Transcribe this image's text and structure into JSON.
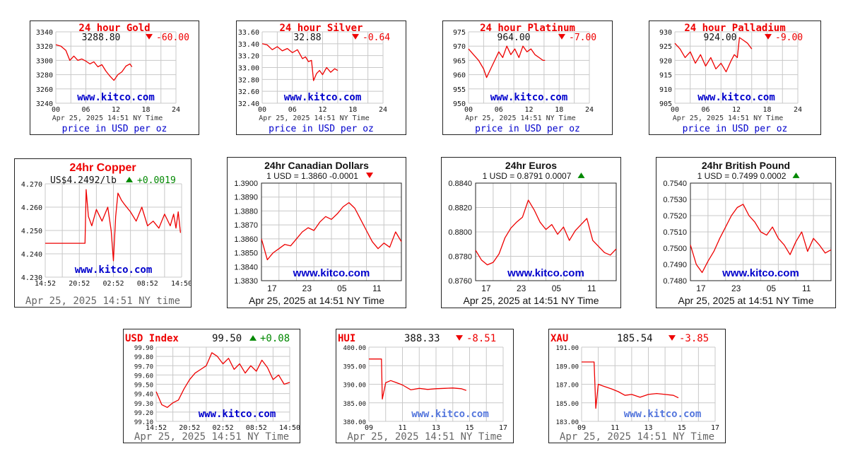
{
  "colors": {
    "line": "#ee0000",
    "up": "#008800",
    "down": "#ee0000",
    "kitco": "#0000cc",
    "kitco_light": "#5577dd",
    "grid": "#c8c8c8",
    "fgray": "#666666"
  },
  "panels": [
    {
      "id": "gold",
      "style": "metal",
      "title": "24 hour Gold",
      "price": "3288.80",
      "change": "-60.00",
      "direction": "down",
      "watermark": "www.kitco.com",
      "timestamp": "Apr 25, 2025 14:51 NY Time",
      "footer": "price in USD per oz",
      "chart_data": {
        "type": "line",
        "ylim": [
          3240,
          3340
        ],
        "yticks": [
          "3340",
          "3320",
          "3300",
          "3280",
          "3260",
          "3240"
        ],
        "xlim": [
          0,
          24
        ],
        "xticks": [
          "00",
          "06",
          "12",
          "18",
          "24"
        ],
        "x": [
          0,
          1,
          2,
          2.8,
          3.6,
          4.4,
          5.2,
          6,
          6.8,
          7.6,
          8.4,
          9.2,
          10,
          10.8,
          11.6,
          12.4,
          13.2,
          14,
          14.8,
          15.2
        ],
        "values": [
          3322,
          3320,
          3314,
          3300,
          3306,
          3300,
          3302,
          3299,
          3295,
          3298,
          3291,
          3294,
          3285,
          3278,
          3272,
          3280,
          3284,
          3292,
          3295,
          3291
        ]
      }
    },
    {
      "id": "silver",
      "style": "metal",
      "title": "24 hour Silver",
      "price": "32.88",
      "change": "-0.64",
      "direction": "down",
      "watermark": "www.kitco.com",
      "timestamp": "Apr 25, 2025 14:51 NY Time",
      "footer": "price in USD per oz",
      "chart_data": {
        "type": "line",
        "ylim": [
          32.4,
          33.6
        ],
        "yticks": [
          "33.60",
          "33.40",
          "33.20",
          "33.00",
          "32.80",
          "32.60",
          "32.40"
        ],
        "xlim": [
          0,
          24
        ],
        "xticks": [
          "00",
          "06",
          "12",
          "18",
          "24"
        ],
        "x": [
          0,
          1,
          2,
          3,
          4,
          5,
          6,
          7,
          8,
          8.6,
          9.2,
          9.8,
          10.2,
          10.8,
          11.4,
          12,
          12.8,
          13.6,
          14.4,
          15
        ],
        "values": [
          33.4,
          33.38,
          33.3,
          33.35,
          33.28,
          33.32,
          33.25,
          33.3,
          33.15,
          33.18,
          33.1,
          33.12,
          32.78,
          32.9,
          32.95,
          32.88,
          33.0,
          32.92,
          32.98,
          32.95
        ]
      }
    },
    {
      "id": "platinum",
      "style": "metal",
      "title": "24 hour Platinum",
      "price": "964.00",
      "change": "-7.00",
      "direction": "down",
      "watermark": "www.kitco.com",
      "timestamp": "Apr 25, 2025 14:51 NY Time",
      "footer": "price in USD per oz",
      "chart_data": {
        "type": "line",
        "ylim": [
          950,
          975
        ],
        "yticks": [
          "975",
          "970",
          "965",
          "960",
          "955",
          "950"
        ],
        "xlim": [
          0,
          24
        ],
        "xticks": [
          "00",
          "06",
          "12",
          "18",
          "24"
        ],
        "x": [
          0,
          1,
          2,
          3,
          3.6,
          4.4,
          5.2,
          6,
          6.8,
          7.6,
          8.4,
          9.2,
          10,
          10.8,
          11.6,
          12.4,
          13.2,
          14,
          14.8,
          15.2
        ],
        "values": [
          969,
          967,
          965,
          962,
          959,
          962,
          965,
          968,
          966,
          970,
          967,
          969,
          966,
          970,
          968,
          969,
          967,
          966,
          965,
          965
        ]
      }
    },
    {
      "id": "palladium",
      "style": "metal",
      "title": "24 hour Palladium",
      "price": "924.00",
      "change": "-9.00",
      "direction": "down",
      "watermark": "www.kitco.com",
      "timestamp": "Apr 25, 2025 14:51 NY Time",
      "footer": "price in USD per oz",
      "chart_data": {
        "type": "line",
        "ylim": [
          905,
          930
        ],
        "yticks": [
          "930",
          "925",
          "920",
          "915",
          "910",
          "905"
        ],
        "xlim": [
          0,
          24
        ],
        "xticks": [
          "00",
          "06",
          "12",
          "18",
          "24"
        ],
        "x": [
          0,
          1,
          2,
          3,
          4,
          5,
          6,
          7,
          8,
          9,
          10,
          11,
          11.6,
          12.2,
          12.6,
          13.4,
          14.2,
          15
        ],
        "values": [
          926,
          924,
          921,
          923,
          919,
          922,
          918,
          921,
          917,
          919,
          916,
          920,
          922,
          921,
          928,
          927,
          926,
          924
        ]
      }
    },
    {
      "id": "copper",
      "style": "copper",
      "title": "24hr Copper",
      "price": "US$4.2492/lb",
      "change": "+0.0019",
      "direction": "up",
      "watermark": "www.kitco.com",
      "footer": "Apr 25, 2025 14:51 NY time",
      "chart_data": {
        "type": "line",
        "ylim": [
          4.23,
          4.27
        ],
        "yticks": [
          "4.270",
          "4.260",
          "4.250",
          "4.240",
          "4.230"
        ],
        "xlim": [
          0,
          24
        ],
        "xticks": [
          "14:52",
          "20:52",
          "02:52",
          "08:52",
          "14:50"
        ],
        "x": [
          0,
          7,
          7.2,
          7.6,
          8.2,
          9,
          10,
          11,
          11.6,
          12,
          12.4,
          12.8,
          13.4,
          14,
          15,
          16,
          17,
          18,
          19,
          20,
          21,
          22,
          22.6,
          23,
          23.4,
          23.8
        ],
        "values": [
          4.2445,
          4.2445,
          4.2675,
          4.256,
          4.252,
          4.259,
          4.254,
          4.26,
          4.25,
          4.237,
          4.256,
          4.266,
          4.263,
          4.261,
          4.258,
          4.254,
          4.26,
          4.252,
          4.254,
          4.251,
          4.257,
          4.252,
          4.257,
          4.251,
          4.258,
          4.249
        ]
      }
    },
    {
      "id": "cad",
      "style": "forex",
      "title": "24hr Canadian Dollars",
      "header": "1 USD = 1.3860  -0.0001",
      "direction": "down",
      "watermark": "www.kitco.com",
      "footer": "Apr 25, 2025 at 14:51 NY Time",
      "chart_data": {
        "type": "line",
        "ylim": [
          1.383,
          1.39
        ],
        "yticks": [
          "1.3900",
          "1.3890",
          "1.3880",
          "1.3870",
          "1.3860",
          "1.3850",
          "1.3840",
          "1.3830"
        ],
        "xlim": [
          0,
          24
        ],
        "xticks": [
          "17",
          "23",
          "05",
          "11"
        ],
        "x": [
          0,
          1,
          2,
          3,
          4,
          5,
          6,
          7,
          8,
          9,
          10,
          11,
          12,
          13,
          14,
          15,
          16,
          17,
          18,
          19,
          20,
          21,
          22,
          23,
          24
        ],
        "values": [
          1.386,
          1.3845,
          1.385,
          1.3853,
          1.3856,
          1.3855,
          1.386,
          1.3865,
          1.3868,
          1.3866,
          1.3872,
          1.3876,
          1.3874,
          1.3878,
          1.3883,
          1.3886,
          1.3882,
          1.3874,
          1.3866,
          1.3858,
          1.3853,
          1.3857,
          1.3854,
          1.3865,
          1.3858
        ]
      }
    },
    {
      "id": "eur",
      "style": "forex",
      "title": "24hr Euros",
      "header": "1 USD = 0.8791  0.0007",
      "direction": "up",
      "watermark": "www.kitco.com",
      "footer": "Apr 25, 2025 at 14:51 NY Time",
      "chart_data": {
        "type": "line",
        "ylim": [
          0.876,
          0.884
        ],
        "yticks": [
          "0.8840",
          "0.8820",
          "0.8800",
          "0.8780",
          "0.8760"
        ],
        "xlim": [
          0,
          24
        ],
        "xticks": [
          "17",
          "23",
          "05",
          "11"
        ],
        "x": [
          0,
          1,
          2,
          3,
          4,
          5,
          6,
          7,
          8,
          9,
          10,
          11,
          12,
          13,
          14,
          15,
          16,
          17,
          18,
          19,
          20,
          21,
          22,
          23,
          24
        ],
        "values": [
          0.8785,
          0.8777,
          0.8773,
          0.8775,
          0.8782,
          0.8795,
          0.8803,
          0.8808,
          0.8812,
          0.8826,
          0.8818,
          0.8808,
          0.8802,
          0.8806,
          0.8798,
          0.8804,
          0.8793,
          0.8801,
          0.8806,
          0.8811,
          0.8793,
          0.8788,
          0.8783,
          0.8781,
          0.8786
        ]
      }
    },
    {
      "id": "gbp",
      "style": "forex",
      "title": "24hr British Pound",
      "header": "1 USD = 0.7499  0.0002",
      "direction": "up",
      "watermark": "www.kitco.com",
      "footer": "Apr 25, 2025 at 14:51 NY Time",
      "chart_data": {
        "type": "line",
        "ylim": [
          0.748,
          0.754
        ],
        "yticks": [
          "0.7540",
          "0.7530",
          "0.7520",
          "0.7510",
          "0.7500",
          "0.7490",
          "0.7480"
        ],
        "xlim": [
          0,
          24
        ],
        "xticks": [
          "17",
          "23",
          "05",
          "11"
        ],
        "x": [
          0,
          1,
          2,
          3,
          4,
          5,
          6,
          7,
          8,
          9,
          10,
          11,
          12,
          13,
          14,
          15,
          16,
          17,
          18,
          19,
          20,
          21,
          22,
          23,
          24
        ],
        "values": [
          0.7502,
          0.749,
          0.7485,
          0.7492,
          0.7498,
          0.7506,
          0.7513,
          0.752,
          0.7525,
          0.7527,
          0.752,
          0.7516,
          0.751,
          0.7508,
          0.7513,
          0.7506,
          0.7502,
          0.7496,
          0.7504,
          0.751,
          0.7498,
          0.7506,
          0.7502,
          0.7497,
          0.7499
        ]
      }
    },
    {
      "id": "usdx",
      "style": "index",
      "title": "USD Index",
      "price": "99.50",
      "change": "+0.08",
      "direction": "up",
      "watermark": "www.kitco.com",
      "footer": "Apr 25, 2025 14:51 NY Time",
      "watermark_color": "dark",
      "chart_data": {
        "type": "line",
        "ylim": [
          99.1,
          99.9
        ],
        "yticks": [
          "99.90",
          "99.80",
          "99.70",
          "99.60",
          "99.50",
          "99.40",
          "99.30",
          "99.20",
          "99.10"
        ],
        "xlim": [
          0,
          24
        ],
        "xticks": [
          "14:52",
          "20:52",
          "02:52",
          "08:52",
          "14:50"
        ],
        "x": [
          0,
          1,
          2,
          3,
          4,
          5,
          6,
          7,
          8,
          9,
          10,
          11,
          12,
          13,
          14,
          15,
          16,
          17,
          18,
          19,
          20,
          21,
          22,
          23,
          24
        ],
        "values": [
          99.42,
          99.28,
          99.25,
          99.3,
          99.33,
          99.45,
          99.55,
          99.62,
          99.66,
          99.7,
          99.84,
          99.8,
          99.72,
          99.78,
          99.66,
          99.72,
          99.62,
          99.7,
          99.64,
          99.76,
          99.68,
          99.55,
          99.6,
          99.5,
          99.52
        ]
      }
    },
    {
      "id": "hui",
      "style": "index",
      "title": "HUI",
      "price": "388.33",
      "change": "-8.51",
      "direction": "down",
      "watermark": "www.kitco.com",
      "footer": "Apr 25, 2025 14:51 NY Time",
      "watermark_color": "light",
      "chart_data": {
        "type": "line",
        "ylim": [
          380,
          400
        ],
        "yticks": [
          "400.00",
          "395.00",
          "390.00",
          "385.00",
          "380.00"
        ],
        "xlim": [
          9,
          17
        ],
        "xticks": [
          "09",
          "11",
          "13",
          "15",
          "17"
        ],
        "x": [
          9,
          9.75,
          9.8,
          10,
          10.3,
          10.6,
          11,
          11.5,
          12,
          12.5,
          13,
          13.5,
          14,
          14.5,
          14.8
        ],
        "values": [
          396.8,
          396.8,
          386,
          390.4,
          391,
          390.5,
          389.8,
          388.5,
          388.9,
          388.6,
          388.8,
          388.9,
          389,
          388.8,
          388.33
        ]
      }
    },
    {
      "id": "xau",
      "style": "index",
      "title": "XAU",
      "price": "185.54",
      "change": "-3.85",
      "direction": "down",
      "watermark": "www.kitco.com",
      "footer": "Apr 25, 2025 14:51 NY Time",
      "watermark_color": "light",
      "chart_data": {
        "type": "line",
        "ylim": [
          183,
          191
        ],
        "yticks": [
          "191.00",
          "189.00",
          "187.00",
          "185.00",
          "183.00"
        ],
        "xlim": [
          9,
          17
        ],
        "xticks": [
          "09",
          "11",
          "13",
          "15",
          "17"
        ],
        "x": [
          9,
          9.75,
          9.85,
          10,
          10.3,
          10.8,
          11.2,
          11.6,
          12,
          12.5,
          13,
          13.5,
          14,
          14.5,
          14.8
        ],
        "values": [
          189.4,
          189.4,
          184.4,
          187,
          186.8,
          186.5,
          186.2,
          185.8,
          185.9,
          185.6,
          185.9,
          186.0,
          185.9,
          185.8,
          185.54
        ]
      }
    }
  ]
}
